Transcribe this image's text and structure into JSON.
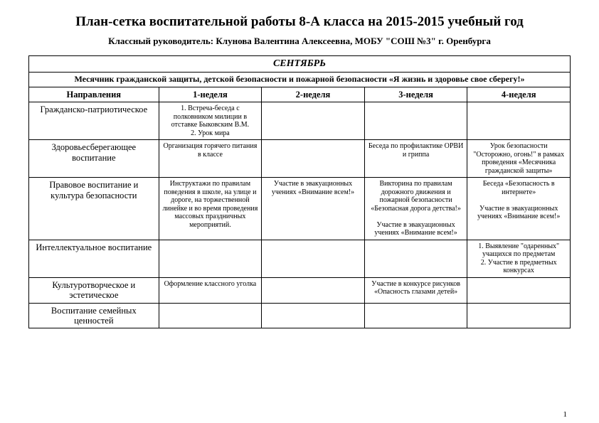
{
  "title": "План-сетка воспитательной работы 8-А класса на 2015-2015 учебный год",
  "subtitle": "Классный руководитель: Клунова Валентина Алексеевна, МОБУ \"СОШ №3\" г. Оренбурга",
  "month": "СЕНТЯБРЬ",
  "banner": "Месячник гражданской защиты, детской безопасности и пожарной безопасности «Я жизнь и здоровье свое сберегу!»",
  "columns": {
    "c0": "Направления",
    "c1": "1-неделя",
    "c2": "2-неделя",
    "c3": "3-неделя",
    "c4": "4-неделя"
  },
  "rows": {
    "r1": {
      "dir": "Гражданско-патриотическое",
      "w1": "1. Встреча-беседа с полковником милиции в отставке Быковским В.М.\n2. Урок мира",
      "w2": "",
      "w3": "",
      "w4": ""
    },
    "r2": {
      "dir": "Здоровьесберегающее воспитание",
      "w1": "Организация горячего питания в классе",
      "w2": "",
      "w3": "Беседа по профилактике ОРВИ и гриппа",
      "w4": "Урок безопасности \"Осторожно, огонь!\" в рамках проведения «Месячника гражданской защиты»"
    },
    "r3": {
      "dir": "Правовое воспитание и культура безопасности",
      "w1": "Инструктажи по правилам поведения в школе, на улице и дороге, на торжественной линейке и во время проведения массовых праздничных мероприятий.",
      "w2": "Участие в эвакуационных учениях «Внимание всем!»",
      "w3": "Викторина по правилам дорожного движения и пожарной безопасности «Безопасная дорога детства!»\n\nУчастие в эвакуационных учениях «Внимание всем!»",
      "w4": "Беседа «Безопасность в интернете»\n\nУчастие в эвакуационных учениях «Внимание всем!»"
    },
    "r4": {
      "dir": "Интеллектуальное воспитание",
      "w1": "",
      "w2": "",
      "w3": "",
      "w4": "1. Выявление \"одаренных\" учащихся по предметам\n2. Участие в предметных конкурсах"
    },
    "r5": {
      "dir": "Культуротворческое и эстетическое",
      "w1": "Оформление классного уголка",
      "w2": "",
      "w3": "Участие в конкурсе рисунков «Опасность глазами детей»",
      "w4": ""
    },
    "r6": {
      "dir": "Воспитание семейных ценностей",
      "w1": "",
      "w2": "",
      "w3": "",
      "w4": ""
    }
  },
  "page_number": "1"
}
